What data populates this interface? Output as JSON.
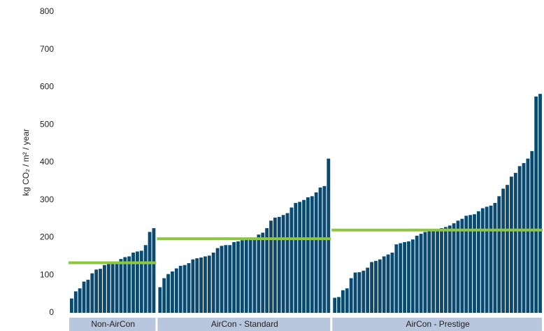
{
  "chart_data": {
    "type": "grouped_sorted_bar",
    "y_label": "kg CO₂ / m² / year",
    "ylim": [
      0,
      800
    ],
    "yticks": [
      0,
      100,
      200,
      300,
      400,
      500,
      600,
      700,
      800
    ],
    "grid": false,
    "bar_color": "#0b4a70",
    "average_color": "#8dc63f",
    "group_label_color": "#b8c7dd",
    "groups": [
      {
        "name": "Non-AirCon",
        "average": 133,
        "values": [
          38,
          57,
          65,
          83,
          88,
          105,
          115,
          117,
          127,
          130,
          132,
          135,
          143,
          148,
          150,
          160,
          163,
          165,
          180,
          215,
          225
        ]
      },
      {
        "name": "AirCon - Standard",
        "average": 197,
        "values": [
          68,
          92,
          103,
          110,
          118,
          125,
          127,
          132,
          142,
          145,
          147,
          150,
          152,
          160,
          172,
          178,
          180,
          180,
          188,
          190,
          193,
          195,
          197,
          200,
          208,
          213,
          225,
          245,
          253,
          255,
          260,
          265,
          280,
          292,
          295,
          300,
          307,
          310,
          320,
          333,
          337,
          410
        ]
      },
      {
        "name": "AirCon - Prestige",
        "average": 220,
        "values": [
          40,
          42,
          60,
          65,
          92,
          107,
          108,
          112,
          120,
          135,
          138,
          142,
          150,
          155,
          160,
          182,
          185,
          188,
          190,
          195,
          205,
          210,
          215,
          218,
          220,
          222,
          225,
          228,
          232,
          238,
          245,
          250,
          258,
          260,
          262,
          270,
          278,
          282,
          285,
          292,
          310,
          330,
          340,
          362,
          372,
          390,
          398,
          410,
          430,
          575,
          582
        ]
      }
    ]
  }
}
